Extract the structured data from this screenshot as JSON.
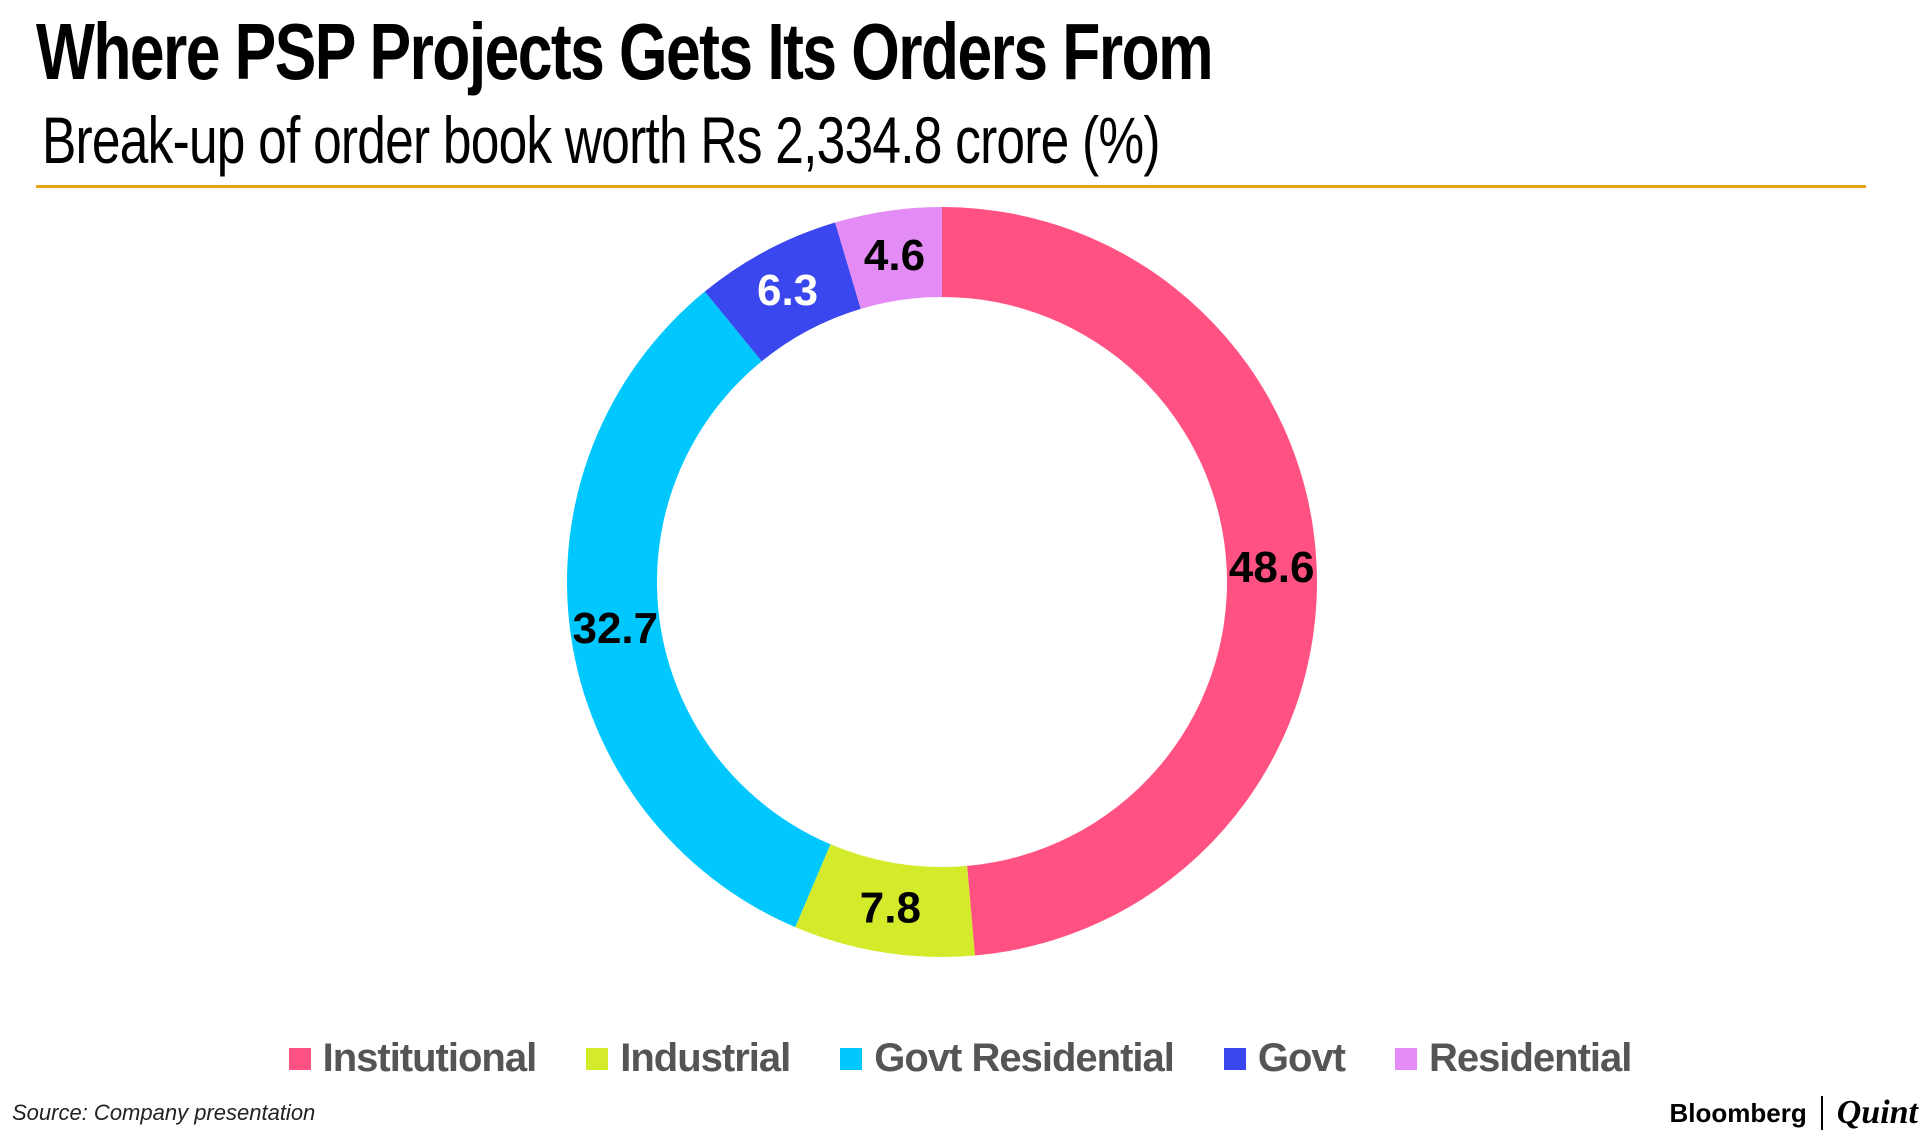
{
  "chart_data": {
    "type": "pie",
    "variant": "donut",
    "title": "Where PSP Projects Gets Its Orders From",
    "subtitle": "Break-up of order book worth Rs 2,334.8 crore (%)",
    "categories": [
      "Institutional",
      "Industrial",
      "Govt Residential",
      "Govt",
      "Residential"
    ],
    "values": [
      48.6,
      7.8,
      32.7,
      6.3,
      4.6
    ],
    "value_labels": [
      "48.6",
      "7.8",
      "32.7",
      "6.3",
      "4.6"
    ],
    "colors": [
      "#ff5282",
      "#d4eb2c",
      "#00c8ff",
      "#3a46ee",
      "#e48cf5"
    ],
    "label_colors": [
      "#000000",
      "#000000",
      "#000000",
      "#ffffff",
      "#000000"
    ],
    "legend_position": "bottom"
  },
  "source": "Source: Company presentation",
  "brand": {
    "name": "Bloomberg",
    "suffix": "Quint"
  }
}
